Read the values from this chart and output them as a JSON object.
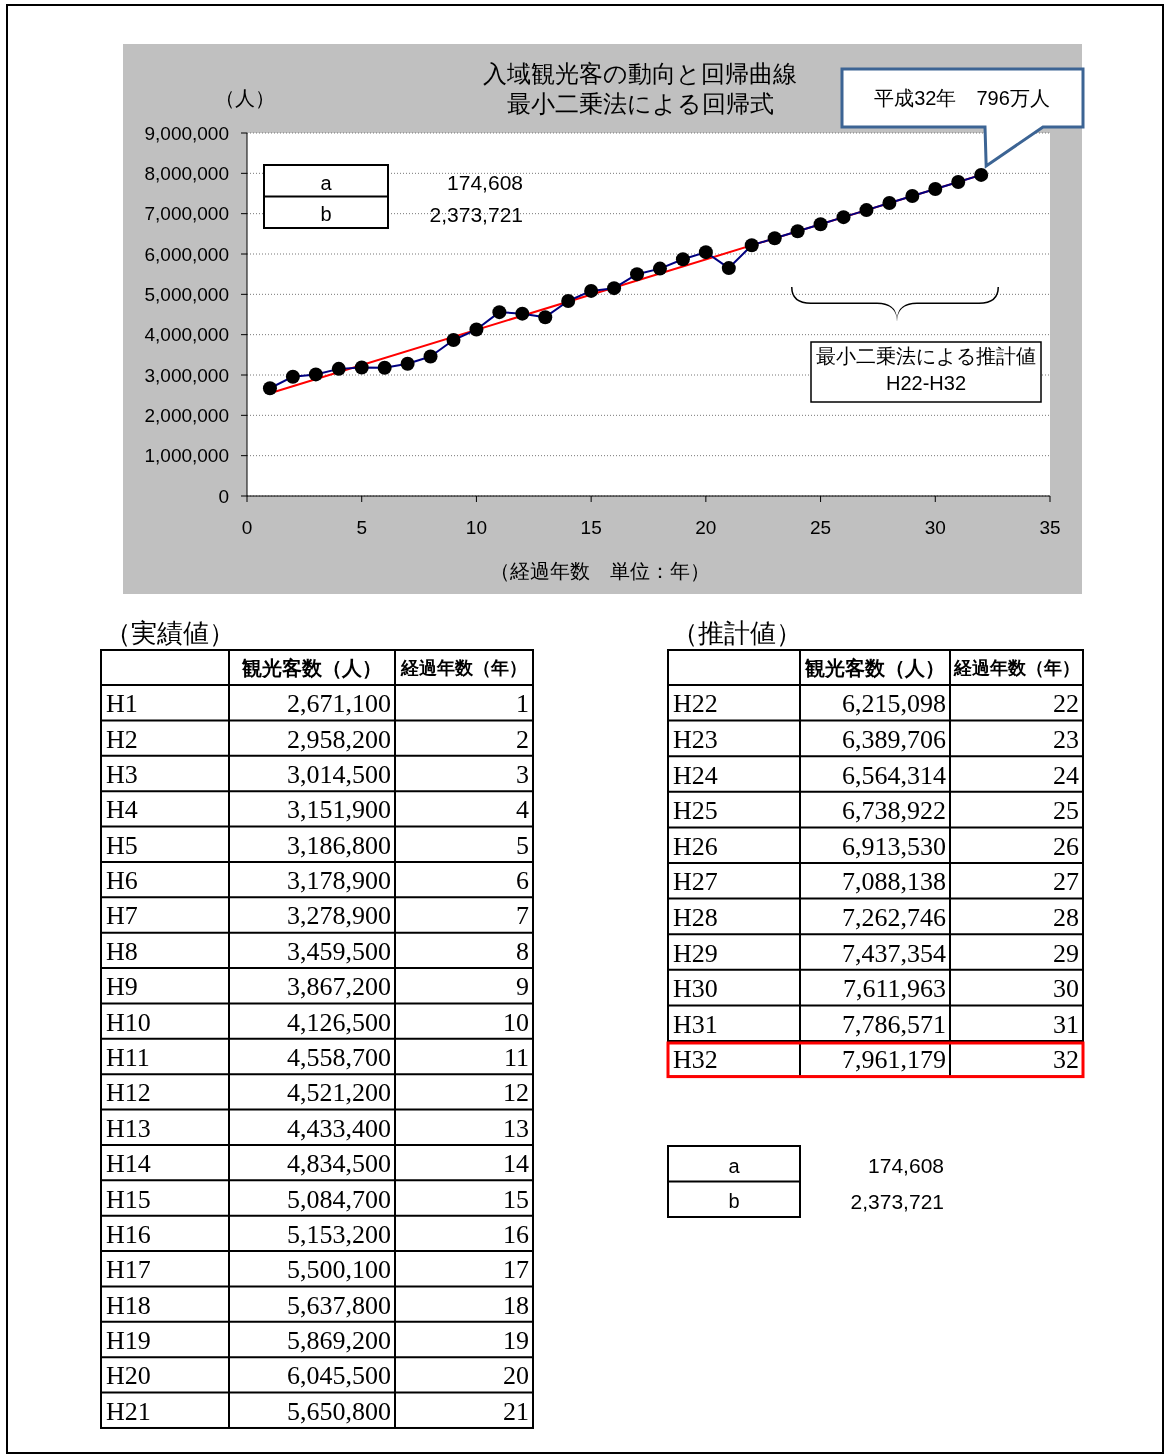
{
  "chart_data": {
    "type": "line",
    "title": "入域観光客の動向と回帰曲線",
    "subtitle": "最小二乗法による回帰式",
    "ylabel": "（人）",
    "xlabel": "（経過年数　単位：年）",
    "xlim": [
      0,
      35
    ],
    "xticks": [
      0,
      5,
      10,
      15,
      20,
      25,
      30,
      35
    ],
    "ylim": [
      0,
      9000000
    ],
    "yticks": [
      0,
      {
        "value": 1000000,
        "label": "1,000,000"
      },
      {
        "value": 2000000,
        "label": "2,000,000"
      },
      {
        "value": 3000000,
        "label": "3,000,000"
      },
      {
        "value": 4000000,
        "label": "4,000,000"
      },
      {
        "value": 5000000,
        "label": "5,000,000"
      },
      {
        "value": 6000000,
        "label": "6,000,000"
      },
      {
        "value": 7000000,
        "label": "7,000,000"
      },
      {
        "value": 8000000,
        "label": "8,000,000"
      },
      {
        "value": 9000000,
        "label": "9,000,000"
      }
    ],
    "grid": "y",
    "series": [
      {
        "color": "#000080",
        "marker": "circle",
        "x": [
          1,
          2,
          3,
          4,
          5,
          6,
          7,
          8,
          9,
          10,
          11,
          12,
          13,
          14,
          15,
          16,
          17,
          18,
          19,
          20,
          21,
          22,
          23,
          24,
          25,
          26,
          27,
          28,
          29,
          30,
          31,
          32
        ],
        "values": [
          2671100,
          2958200,
          3014500,
          3151900,
          3186800,
          3178900,
          3278900,
          3459500,
          3867200,
          4126500,
          4558700,
          4521200,
          4433400,
          4834500,
          5084700,
          5153200,
          5500100,
          5637800,
          5869200,
          6045500,
          5650800,
          6215098,
          6389706,
          6564314,
          6738922,
          6913530,
          7088138,
          7262746,
          7437354,
          7611963,
          7786571,
          7961179
        ]
      },
      {
        "color": "#ff0000",
        "x": [
          1,
          32
        ],
        "values": [
          2548329,
          7961177
        ]
      }
    ],
    "annotations": [
      "a",
      "b",
      "174,608",
      "2,373,721",
      "平成32年　796万人",
      "最小二乗法による推計値　H22-H32",
      "（実績値）",
      "（推計値）",
      "観光客数（人）",
      "経過年数（年）",
      "H1",
      "2,671,100",
      "1",
      "H2",
      "2,958,200",
      "2",
      "H3",
      "3,014,500",
      "3",
      "H4",
      "3,151,900",
      "4",
      "H5",
      "3,186,800",
      "5",
      "H6",
      "3,178,900",
      "6",
      "H7",
      "3,278,900",
      "7",
      "H8",
      "3,459,500",
      "8",
      "H9",
      "3,867,200",
      "9",
      "H10",
      "4,126,500",
      "10",
      "H11",
      "4,558,700",
      "11",
      "H12",
      "4,521,200",
      "12",
      "H13",
      "4,433,400",
      "13",
      "H14",
      "4,834,500",
      "14",
      "H15",
      "5,084,700",
      "15",
      "H16",
      "5,153,200",
      "16",
      "H17",
      "5,500,100",
      "17",
      "H18",
      "5,637,800",
      "18",
      "H19",
      "5,869,200",
      "19",
      "H20",
      "6,045,500",
      "20",
      "H21",
      "5,650,800",
      "21",
      "H22",
      "6,215,098",
      "22",
      "H23",
      "6,389,706",
      "23",
      "H24",
      "6,564,314",
      "24",
      "H25",
      "6,738,922",
      "25",
      "H26",
      "6,913,530",
      "26",
      "H27",
      "7,088,138",
      "27",
      "H28",
      "7,262,746",
      "28",
      "H29",
      "7,437,354",
      "29",
      "H30",
      "7,611,963",
      "30",
      "H31",
      "7,786,571",
      "31",
      "H32",
      "7,961,179",
      "32",
      "a",
      "b",
      "174,608",
      "2,373,721"
    ]
  }
}
